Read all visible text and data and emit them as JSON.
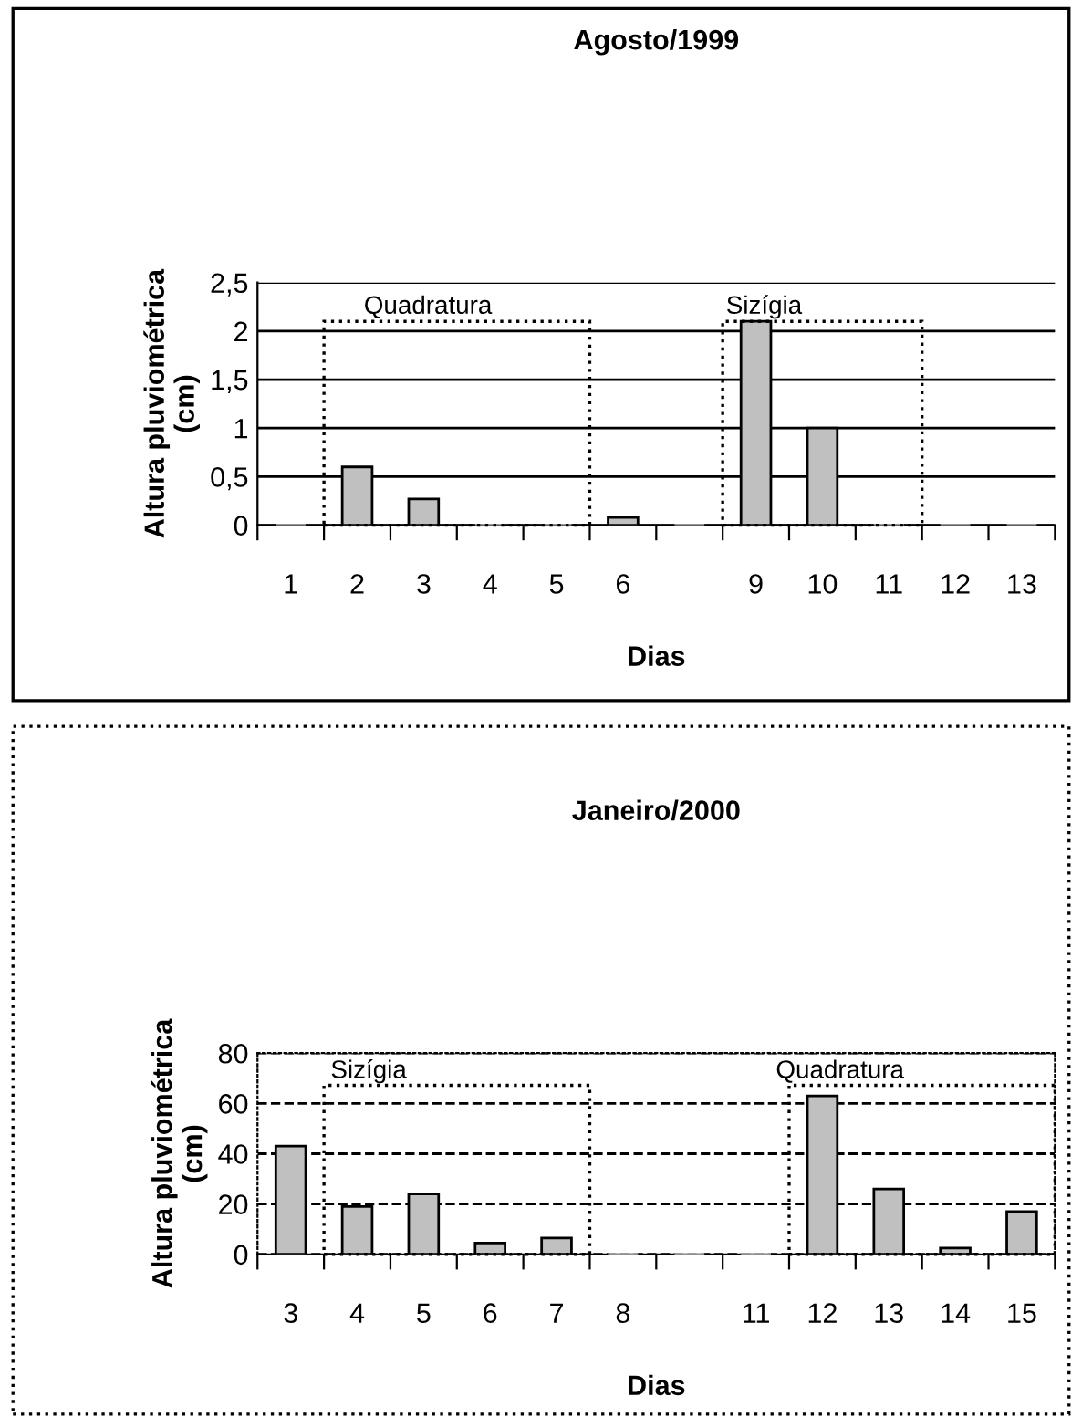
{
  "chart_data": [
    {
      "type": "bar",
      "title": "Agosto/1999",
      "xlabel": "Dias",
      "ylabel": "Altura pluviométrica\n(cm)",
      "categories": [
        "1",
        "2",
        "3",
        "4",
        "5",
        "6",
        null,
        "9",
        "10",
        "11",
        "12",
        "13"
      ],
      "series": [
        {
          "color": "#c0c0c0",
          "values": [
            0,
            0.6,
            0.27,
            0,
            0,
            0.08,
            0,
            2.1,
            1.0,
            0,
            0,
            0
          ]
        }
      ],
      "ylim": [
        0,
        2.5
      ],
      "yticks": [
        0,
        {
          "value": 0.5,
          "label": "0,5"
        },
        1,
        {
          "value": 1.5,
          "label": "1,5"
        },
        2,
        {
          "value": 2.5,
          "label": "2,5"
        }
      ],
      "grid": "y",
      "annotations": [
        "Quadratura",
        "Sizígia"
      ]
    },
    {
      "type": "bar",
      "title": "Janeiro/2000",
      "xlabel": "Dias",
      "ylabel": "Altura pluviométrica\n(cm)",
      "categories": [
        "3",
        "4",
        "5",
        "6",
        "7",
        "8",
        null,
        "11",
        "12",
        "13",
        "14",
        "15"
      ],
      "series": [
        {
          "color": "#c0c0c0",
          "values": [
            43,
            19,
            24,
            4.5,
            6.5,
            0,
            0,
            0,
            63,
            26,
            2.5,
            17
          ]
        }
      ],
      "ylim": [
        0,
        80
      ],
      "yticks": [
        0,
        20,
        40,
        60,
        80
      ],
      "grid": "y",
      "annotations": [
        "Sizígia",
        "Quadratura"
      ]
    }
  ]
}
